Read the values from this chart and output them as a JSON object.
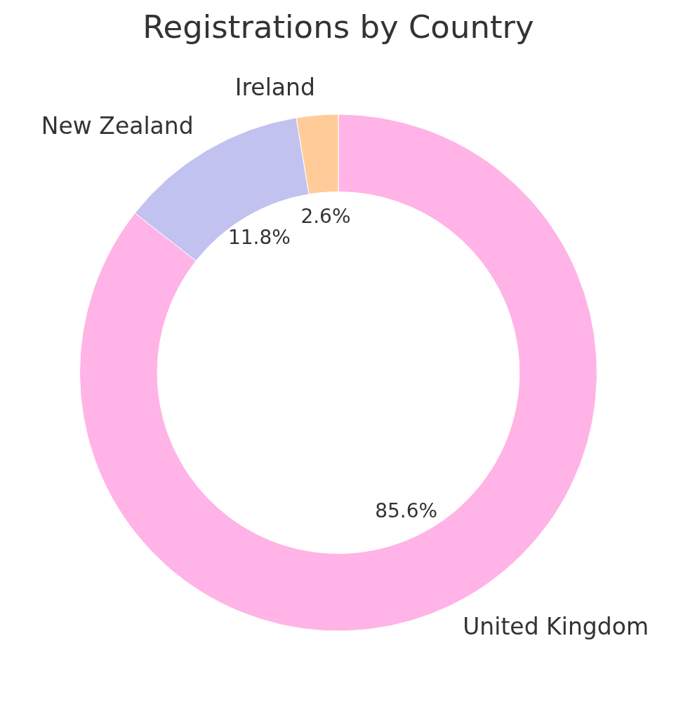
{
  "chart_data": {
    "type": "donut",
    "title": "Registrations by Country",
    "categories": [
      "United Kingdom",
      "New Zealand",
      "Ireland"
    ],
    "values": [
      85.6,
      11.8,
      2.6
    ],
    "colors": [
      "#ffb3e6",
      "#c2c2f0",
      "#ffcc99"
    ],
    "value_labels": [
      "85.6%",
      "11.8%",
      "2.6%"
    ]
  }
}
